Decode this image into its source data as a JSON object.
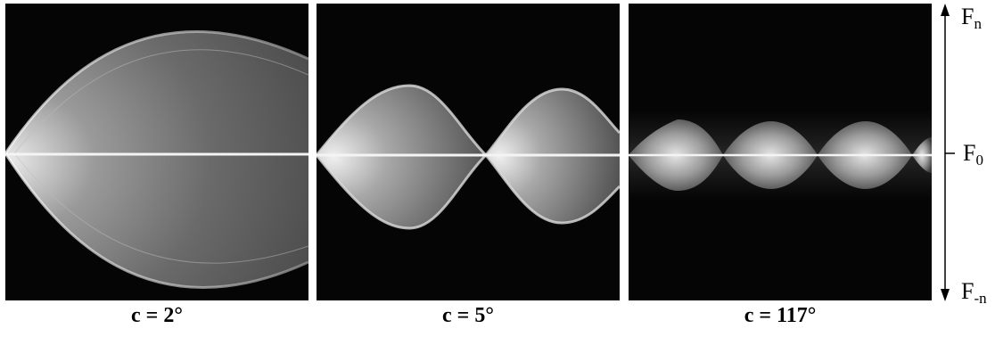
{
  "panels": [
    {
      "caption": "c = 2°"
    },
    {
      "caption": "c = 5°"
    },
    {
      "caption": "c = 117°"
    }
  ],
  "axis": {
    "top_base": "F",
    "top_sub": "n",
    "mid_base": "F",
    "mid_sub": "0",
    "bot_base": "F",
    "bot_sub": "-n"
  },
  "colors": {
    "background": "#050505",
    "lobe_fill": "#6e6e6e",
    "lobe_edge": "#d8d8d8",
    "center_line": "#f4f4f4"
  }
}
